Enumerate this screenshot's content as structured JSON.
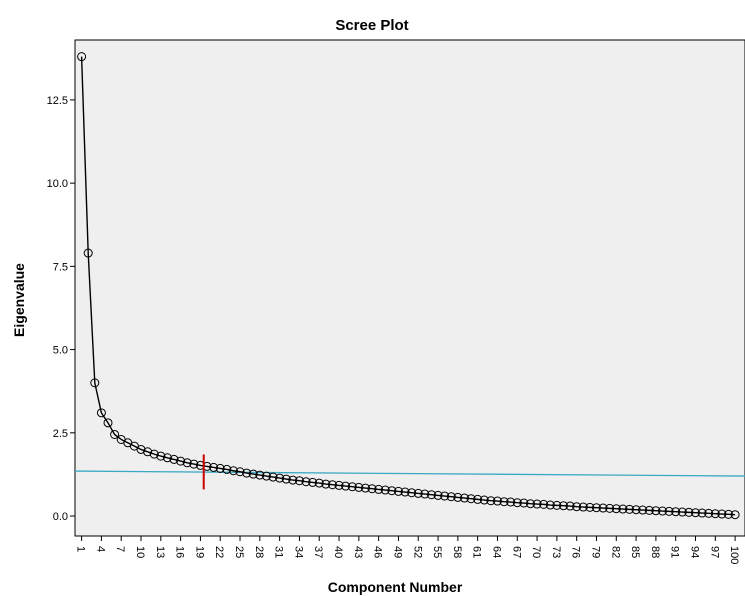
{
  "chart_data": {
    "type": "line",
    "title": "Scree Plot",
    "xlabel": "Component Number",
    "ylabel": "Eigenvalue",
    "xlim": [
      0,
      101.5
    ],
    "ylim": [
      -0.6,
      14.3
    ],
    "y_ticks": [
      0.0,
      2.5,
      5.0,
      7.5,
      10.0,
      12.5
    ],
    "y_tick_labels": [
      "0.0",
      "2.5",
      "5.0",
      "7.5",
      "10.0",
      "12.5"
    ],
    "x_ticks": [
      1,
      4,
      7,
      10,
      13,
      16,
      19,
      22,
      25,
      28,
      31,
      34,
      37,
      40,
      43,
      46,
      49,
      52,
      55,
      58,
      61,
      64,
      67,
      70,
      73,
      76,
      79,
      82,
      85,
      88,
      91,
      94,
      97,
      100
    ],
    "series": [
      {
        "values": [
          13.8,
          7.9,
          4.0,
          3.1,
          2.8,
          2.45,
          2.3,
          2.2,
          2.1,
          2.0,
          1.93,
          1.86,
          1.8,
          1.75,
          1.7,
          1.65,
          1.6,
          1.56,
          1.52,
          1.49,
          1.46,
          1.43,
          1.4,
          1.36,
          1.33,
          1.29,
          1.26,
          1.23,
          1.2,
          1.17,
          1.14,
          1.11,
          1.08,
          1.06,
          1.03,
          1.01,
          0.99,
          0.96,
          0.94,
          0.92,
          0.9,
          0.88,
          0.86,
          0.84,
          0.82,
          0.8,
          0.78,
          0.76,
          0.74,
          0.72,
          0.7,
          0.68,
          0.66,
          0.64,
          0.62,
          0.6,
          0.58,
          0.56,
          0.54,
          0.52,
          0.5,
          0.48,
          0.46,
          0.45,
          0.43,
          0.42,
          0.4,
          0.39,
          0.37,
          0.36,
          0.35,
          0.33,
          0.32,
          0.31,
          0.3,
          0.28,
          0.27,
          0.26,
          0.25,
          0.24,
          0.23,
          0.22,
          0.21,
          0.2,
          0.19,
          0.18,
          0.17,
          0.16,
          0.15,
          0.14,
          0.13,
          0.12,
          0.11,
          0.1,
          0.09,
          0.08,
          0.07,
          0.06,
          0.05,
          0.04
        ]
      }
    ],
    "reference_line": {
      "from": [
        0,
        1.35
      ],
      "to": [
        101.5,
        1.2
      ]
    },
    "marker_x": 19.5,
    "marker_y_range": [
      0.8,
      1.85
    ],
    "colors": {
      "plot_background": "#efefef",
      "series_line": "#000000",
      "reference_line": "#3aa9c4",
      "marker": "#cc0000"
    },
    "grid": false,
    "legend": "none"
  }
}
